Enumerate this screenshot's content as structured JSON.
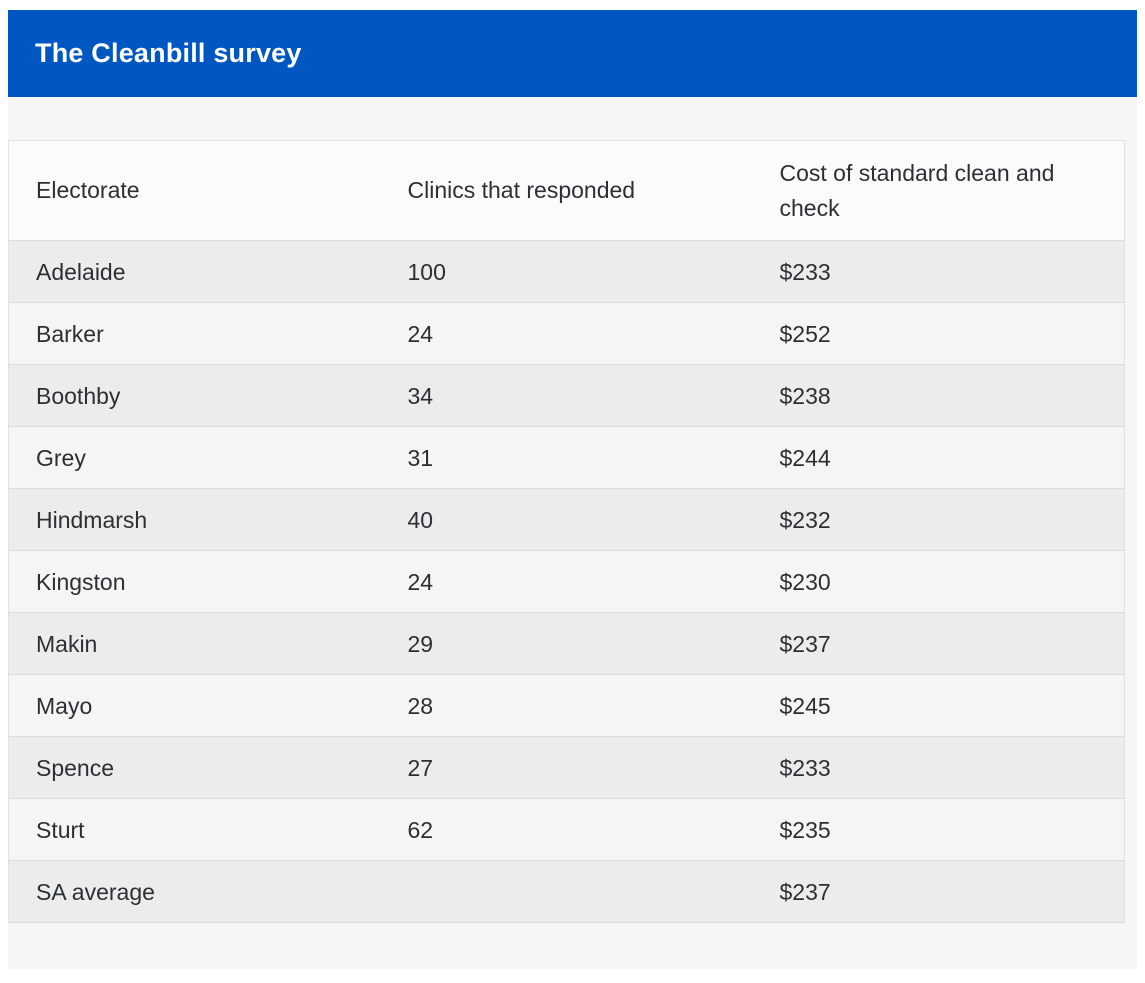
{
  "header": {
    "title": "The Cleanbill survey"
  },
  "table": {
    "columns": [
      "Electorate",
      "Clinics that responded",
      "Cost of standard clean and check"
    ],
    "rows": [
      [
        "Adelaide",
        "100",
        "$233"
      ],
      [
        "Barker",
        "24",
        "$252"
      ],
      [
        "Boothby",
        "34",
        "$238"
      ],
      [
        "Grey",
        "31",
        "$244"
      ],
      [
        "Hindmarsh",
        "40",
        "$232"
      ],
      [
        "Kingston",
        "24",
        "$230"
      ],
      [
        "Makin",
        "29",
        "$237"
      ],
      [
        "Mayo",
        "28",
        "$245"
      ],
      [
        "Spence",
        "27",
        "$233"
      ],
      [
        "Sturt",
        "62",
        "$235"
      ],
      [
        "SA average",
        "",
        "$237"
      ]
    ]
  },
  "colors": {
    "accent_blue": "#0057c2",
    "panel_background": "#f6f6f6",
    "header_row_background": "#fbfbfb",
    "row_odd_background": "#ececec",
    "row_even_background": "#f5f5f5",
    "border": "#dcdcdc",
    "text": "#2b3034",
    "title_text": "#ffffff"
  },
  "chart_data": {
    "type": "table",
    "title": "The Cleanbill survey",
    "columns": [
      "Electorate",
      "Clinics that responded",
      "Cost of standard clean and check"
    ],
    "categories": [
      "Adelaide",
      "Barker",
      "Boothby",
      "Grey",
      "Hindmarsh",
      "Kingston",
      "Makin",
      "Mayo",
      "Spence",
      "Sturt",
      "SA average"
    ],
    "series": [
      {
        "name": "Clinics that responded",
        "values": [
          100,
          24,
          34,
          31,
          40,
          24,
          29,
          28,
          27,
          62,
          null
        ]
      },
      {
        "name": "Cost of standard clean and check ($)",
        "values": [
          233,
          252,
          238,
          244,
          232,
          230,
          237,
          245,
          233,
          235,
          237
        ]
      }
    ],
    "layout": {
      "row_striping": true,
      "grid": false,
      "legend": "none"
    }
  }
}
